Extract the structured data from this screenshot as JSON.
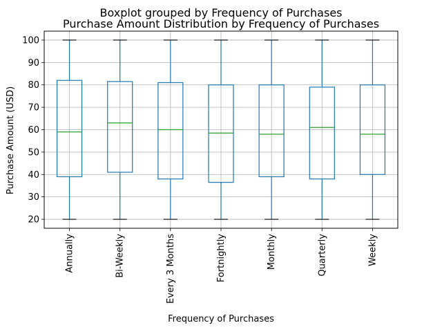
{
  "chart_data": {
    "type": "boxplot",
    "suptitle": "Boxplot grouped by Frequency of Purchases",
    "title": "Purchase Amount Distribution by Frequency of Purchases",
    "xlabel": "Frequency of Purchases",
    "ylabel": "Purchase Amount (USD)",
    "ylim": [
      16,
      104
    ],
    "yticks": [
      20,
      30,
      40,
      50,
      60,
      70,
      80,
      90,
      100
    ],
    "grid": true,
    "categories": [
      "Annually",
      "Bi-Weekly",
      "Every 3 Months",
      "Fortnightly",
      "Monthly",
      "Quarterly",
      "Weekly"
    ],
    "boxes": [
      {
        "min": 20,
        "q1": 39,
        "median": 59,
        "q3": 82,
        "max": 100
      },
      {
        "min": 20,
        "q1": 41,
        "median": 63,
        "q3": 81.5,
        "max": 100
      },
      {
        "min": 20,
        "q1": 38,
        "median": 60,
        "q3": 81,
        "max": 100
      },
      {
        "min": 20,
        "q1": 36.5,
        "median": 58.5,
        "q3": 80,
        "max": 100
      },
      {
        "min": 20,
        "q1": 39,
        "median": 58,
        "q3": 80,
        "max": 100
      },
      {
        "min": 20,
        "q1": 38,
        "median": 61,
        "q3": 79,
        "max": 100
      },
      {
        "min": 20,
        "q1": 40,
        "median": 58,
        "q3": 80,
        "max": 100
      }
    ],
    "colors": {
      "box": "#1f77b4",
      "median": "#2ca02c",
      "cap": "#000000",
      "grid": "#b0b0b0"
    }
  }
}
